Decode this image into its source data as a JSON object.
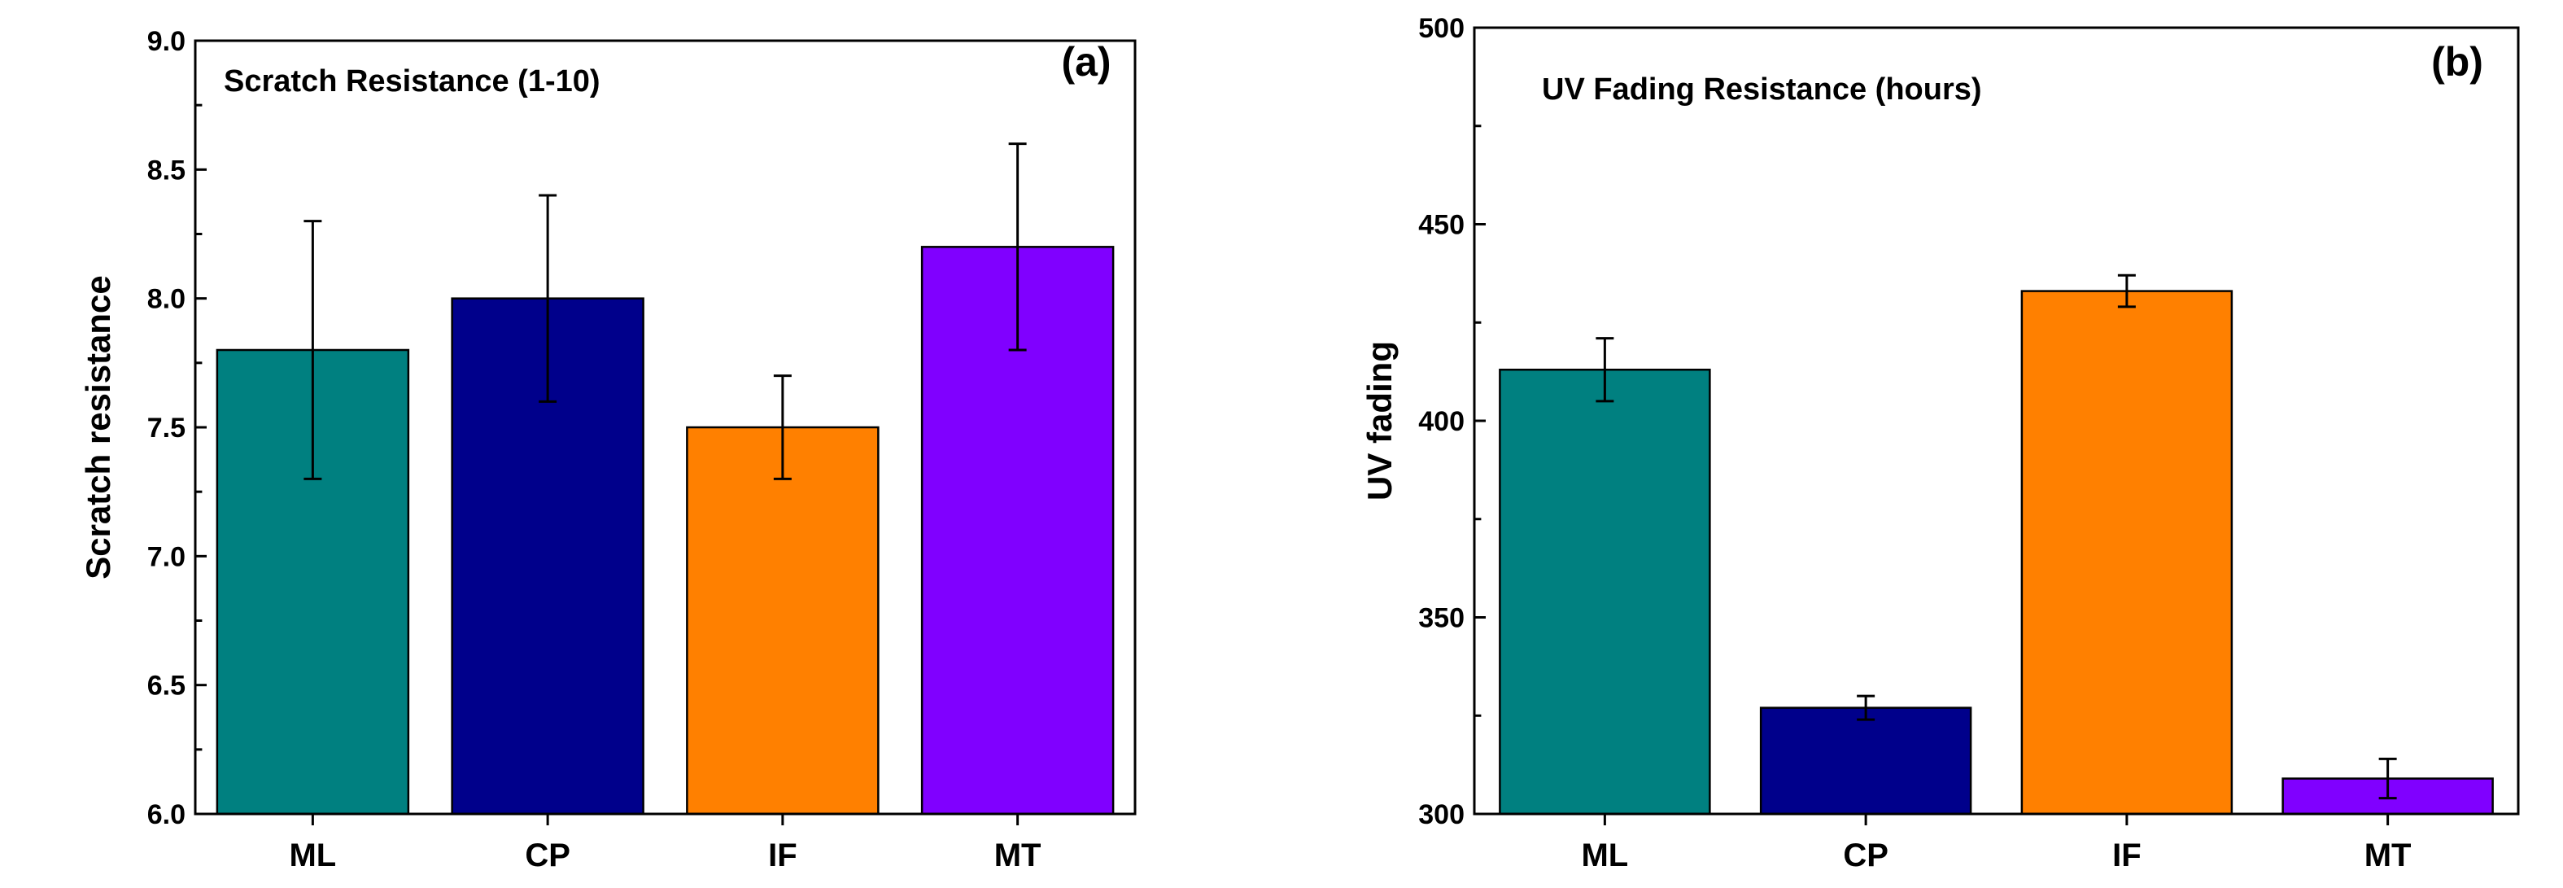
{
  "chart_data": [
    {
      "type": "bar",
      "panel_label": "(a)",
      "title": "Scratch Resistance (1-10)",
      "xlabel": "",
      "ylabel": "Scratch resistance",
      "ylim": [
        6.0,
        9.0
      ],
      "yticks": [
        "6.0",
        "6.5",
        "7.0",
        "7.5",
        "8.0",
        "8.5",
        "9.0"
      ],
      "categories": [
        "ML",
        "CP",
        "IF",
        "MT"
      ],
      "values": [
        7.8,
        8.0,
        7.5,
        8.2
      ],
      "error_low": [
        7.3,
        7.6,
        7.3,
        7.8
      ],
      "error_high": [
        8.3,
        8.4,
        7.7,
        8.6
      ],
      "colors": [
        "#008080",
        "#00008B",
        "#FF8000",
        "#8000FF"
      ],
      "grid": false,
      "legend": "none"
    },
    {
      "type": "bar",
      "panel_label": "(b)",
      "title": "UV Fading Resistance (hours)",
      "xlabel": "",
      "ylabel": "UV fading",
      "ylim": [
        300,
        500
      ],
      "yticks": [
        "300",
        "350",
        "400",
        "450",
        "500"
      ],
      "categories": [
        "ML",
        "CP",
        "IF",
        "MT"
      ],
      "values": [
        413,
        327,
        433,
        309
      ],
      "error_low": [
        405,
        324,
        429,
        304
      ],
      "error_high": [
        421,
        330,
        437,
        314
      ],
      "colors": [
        "#008080",
        "#00008B",
        "#FF8000",
        "#8000FF"
      ],
      "grid": false,
      "legend": "none"
    }
  ]
}
